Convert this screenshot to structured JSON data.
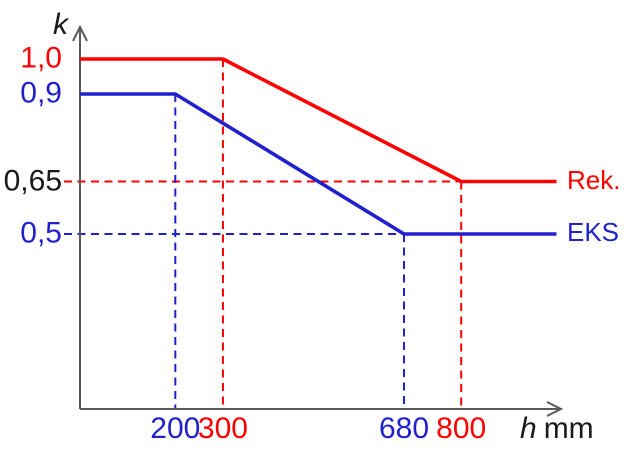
{
  "figure": {
    "background": "#ffffff",
    "axis_color": "#595959"
  },
  "chart_data": {
    "type": "line",
    "title": "",
    "xlabel": "h mm",
    "xlabel_symbol": "h",
    "xlabel_unit": "mm",
    "ylabel": "k",
    "xlim": [
      0,
      1000
    ],
    "ylim": [
      0,
      1.08
    ],
    "grid": false,
    "legend_position": "right-of-line-ends",
    "series": [
      {
        "name": "Rek.",
        "color": "#fe0000",
        "points": [
          [
            0,
            1.0
          ],
          [
            300,
            1.0
          ],
          [
            800,
            0.65
          ],
          [
            1000,
            0.65
          ]
        ]
      },
      {
        "name": "EKS",
        "color": "#2121cc",
        "points": [
          [
            0,
            0.9
          ],
          [
            200,
            0.9
          ],
          [
            680,
            0.5
          ],
          [
            1000,
            0.5
          ]
        ]
      }
    ],
    "y_ticks": [
      {
        "label": "1,0",
        "value": 1.0,
        "color": "#fe0000"
      },
      {
        "label": "0,9",
        "value": 0.9,
        "color": "#2121cc"
      },
      {
        "label": "0,65",
        "value": 0.65,
        "color": "#1a1a1a"
      },
      {
        "label": "0,5",
        "value": 0.5,
        "color": "#2121cc"
      }
    ],
    "x_ticks": [
      {
        "label": "200",
        "value": 200,
        "color": "#2121cc"
      },
      {
        "label": "300",
        "value": 300,
        "color": "#fe0000"
      },
      {
        "label": "680",
        "value": 680,
        "color": "#2121cc"
      },
      {
        "label": "800",
        "value": 800,
        "color": "#fe0000"
      }
    ],
    "guides": [
      {
        "orient": "h",
        "value": 0.65,
        "to_x": 800,
        "color": "#fe0000"
      },
      {
        "orient": "h",
        "value": 0.5,
        "to_x": 680,
        "color": "#2121cc"
      },
      {
        "orient": "v",
        "value": 200,
        "to_y": 0.9,
        "color": "#2121cc"
      },
      {
        "orient": "v",
        "value": 300,
        "to_y": 1.0,
        "color": "#fe0000"
      },
      {
        "orient": "v",
        "value": 680,
        "to_y": 0.5,
        "color": "#2121cc"
      },
      {
        "orient": "v",
        "value": 800,
        "to_y": 0.65,
        "color": "#fe0000"
      }
    ]
  }
}
